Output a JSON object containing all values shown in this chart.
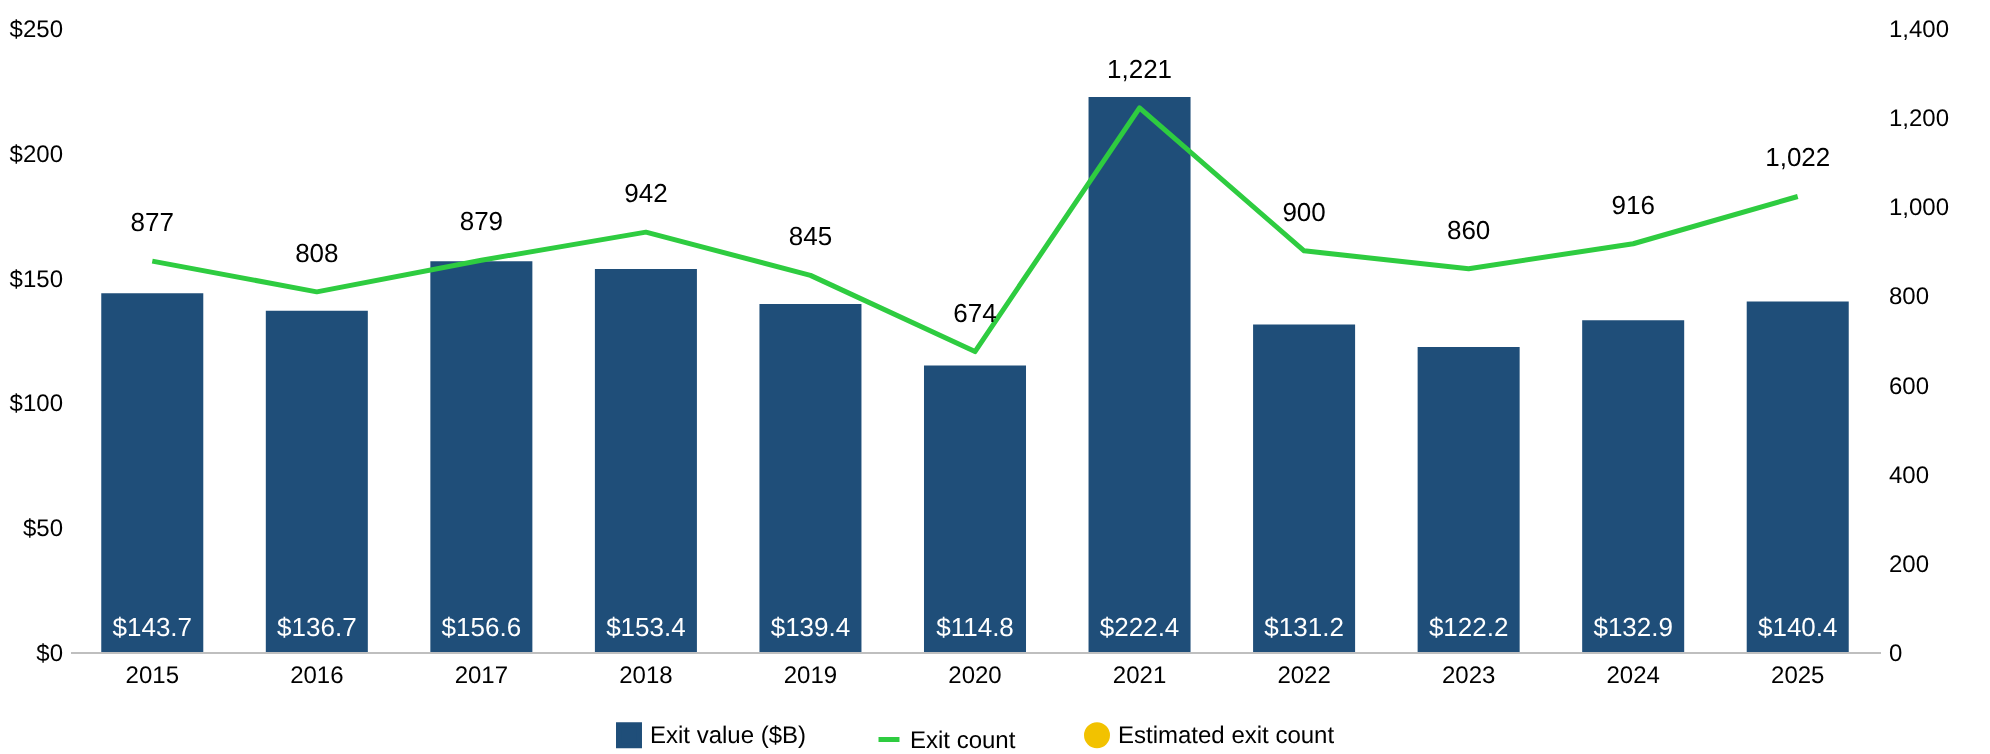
{
  "chart_data": {
    "type": "bar",
    "categories": [
      "2015",
      "2016",
      "2017",
      "2018",
      "2019",
      "2020",
      "2021",
      "2022",
      "2023",
      "2024",
      "2025"
    ],
    "series": [
      {
        "name": "Exit value ($B)",
        "color": "#1f4e79",
        "values": [
          143.7,
          136.7,
          156.6,
          153.4,
          139.4,
          114.8,
          222.4,
          131.2,
          122.2,
          132.9,
          140.4
        ],
        "value_labels": [
          "$143.7",
          "$136.7",
          "$156.6",
          "$153.4",
          "$139.4",
          "$114.8",
          "$222.4",
          "$131.2",
          "$122.2",
          "$132.9",
          "$140.4"
        ]
      },
      {
        "name": "Exit count",
        "type": "line",
        "axis": "y2",
        "color": "#2ecc40",
        "marker": "none",
        "values": [
          877,
          808,
          879,
          942,
          845,
          674,
          1221,
          900,
          860,
          916,
          1022
        ],
        "value_labels": [
          "877",
          "808",
          "879",
          "942",
          "845",
          "674",
          "1,221",
          "900",
          "860",
          "916",
          "1,022"
        ]
      },
      {
        "name": "Estimated exit count",
        "type": "scatter",
        "axis": "y2",
        "color": "#f2c200",
        "marker": "circle",
        "values": [
          null,
          null,
          null,
          null,
          null,
          null,
          null,
          null,
          null,
          null,
          null
        ]
      }
    ],
    "ylim": [
      0,
      250
    ],
    "yticks": [
      {
        "value": 0,
        "label": "$0"
      },
      {
        "value": 50,
        "label": "$50"
      },
      {
        "value": 100,
        "label": "$100"
      },
      {
        "value": 150,
        "label": "$150"
      },
      {
        "value": 200,
        "label": "$200"
      },
      {
        "value": 250,
        "label": "$250"
      }
    ],
    "y2lim": [
      0,
      1400
    ],
    "y2ticks": [
      0,
      200,
      400,
      600,
      800,
      {
        "value": 1000,
        "label": "1,000"
      },
      {
        "value": 1200,
        "label": "1,200"
      },
      {
        "value": 1400,
        "label": "1,400"
      }
    ],
    "grid": false,
    "legend": "bottom"
  }
}
